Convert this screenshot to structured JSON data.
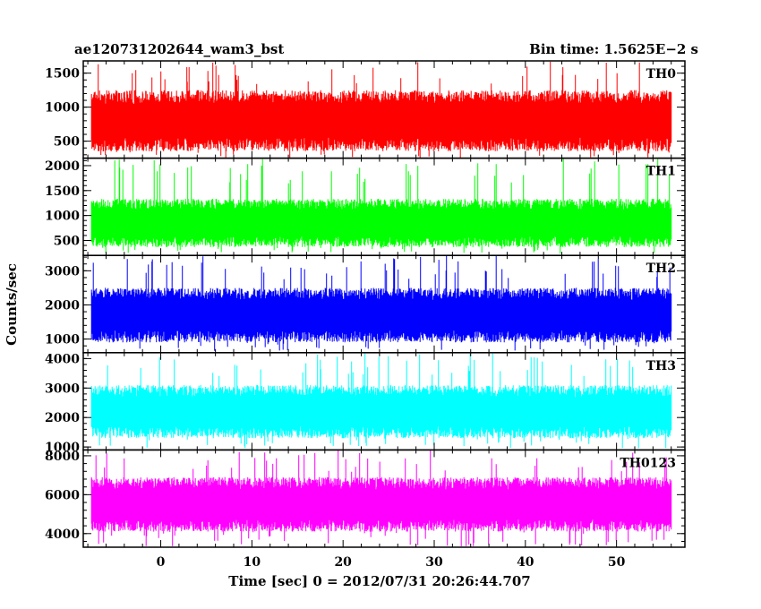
{
  "header": {
    "left_title": "ae120731202644_wam3_bst",
    "right_title": "Bin time: 1.5625E−2 s"
  },
  "chart_data": {
    "type": "line",
    "xlabel": "Time [sec] 0 = 2012/07/31 20:26:44.707",
    "ylabel": "Counts/sec",
    "xlim": [
      -8.5,
      57.5
    ],
    "x_ticks": [
      0,
      10,
      20,
      30,
      40,
      50
    ],
    "x_minor_step": 2,
    "x_data_range": [
      -7.6,
      56.0
    ],
    "bin_time_s": 0.015625,
    "series": [
      {
        "name": "TH0",
        "color": "#ff0000",
        "ylim": [
          250,
          1680
        ],
        "yticks": [
          500,
          1000,
          1500
        ],
        "y_minor_step": 100,
        "band": [
          350,
          1250
        ],
        "mean": 800,
        "spike_max": 1680,
        "dip_min": 250
      },
      {
        "name": "TH1",
        "color": "#00ff00",
        "ylim": [
          200,
          2150
        ],
        "yticks": [
          500,
          1000,
          1500,
          2000
        ],
        "y_minor_step": 100,
        "band": [
          380,
          1350
        ],
        "mean": 850,
        "spike_max": 2150,
        "dip_min": 230
      },
      {
        "name": "TH2",
        "color": "#0000ff",
        "ylim": [
          600,
          3450
        ],
        "yticks": [
          1000,
          2000,
          3000
        ],
        "y_minor_step": 200,
        "band": [
          900,
          2500
        ],
        "mean": 1700,
        "spike_max": 3450,
        "dip_min": 650
      },
      {
        "name": "TH3",
        "color": "#00ffff",
        "ylim": [
          900,
          4200
        ],
        "yticks": [
          1000,
          2000,
          3000,
          4000
        ],
        "y_minor_step": 200,
        "band": [
          1300,
          3100
        ],
        "mean": 2200,
        "spike_max": 4200,
        "dip_min": 950
      },
      {
        "name": "TH0123",
        "color": "#ff00ff",
        "ylim": [
          3300,
          8300
        ],
        "yticks": [
          4000,
          6000,
          8000
        ],
        "y_minor_step": 400,
        "band": [
          4100,
          6900
        ],
        "mean": 5500,
        "spike_max": 8300,
        "dip_min": 3350
      }
    ]
  }
}
